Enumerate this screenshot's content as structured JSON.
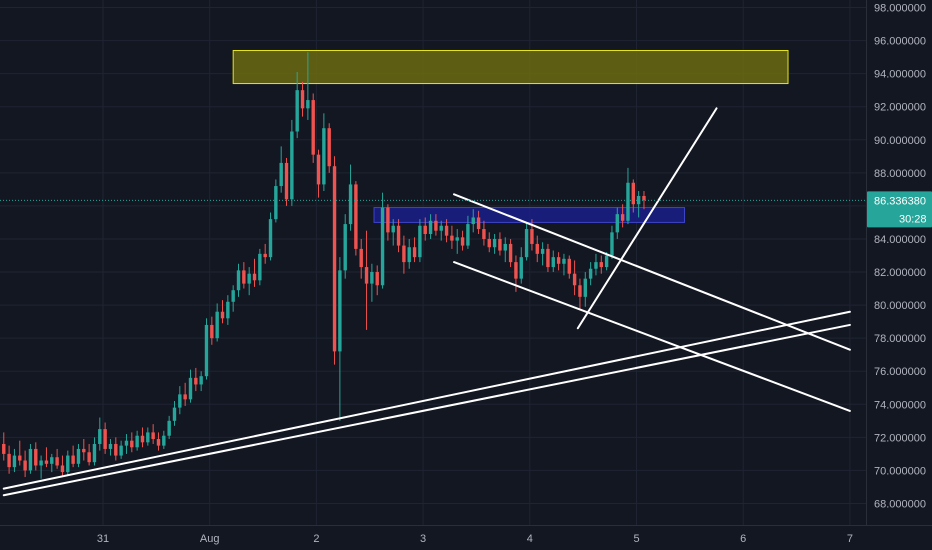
{
  "chart_data": {
    "type": "candlestick",
    "title": "",
    "colors": {
      "background": "#131722",
      "grid": "#1f2433",
      "up": "#26a69a",
      "down": "#ef5350",
      "axis_text": "#b2b5be",
      "price_line": "#26a69a",
      "drawing": "#ffffff",
      "resistance_zone_fill": "#6b6b10",
      "resistance_zone_border": "#e6e619",
      "support_zone_fill": "#1a1f8a",
      "support_zone_border": "#3d44c7"
    },
    "y_axis": {
      "ylim": [
        66.5,
        99.0
      ],
      "ticks": [
        "98.000000",
        "96.000000",
        "94.000000",
        "92.000000",
        "90.000000",
        "88.000000",
        "86.000000",
        "84.000000",
        "82.000000",
        "80.000000",
        "78.000000",
        "76.000000",
        "74.000000",
        "72.000000",
        "70.000000",
        "68.000000"
      ],
      "tick_values": [
        98,
        96,
        94,
        92,
        90,
        88,
        86,
        84,
        82,
        80,
        78,
        76,
        74,
        72,
        70,
        68
      ]
    },
    "x_axis": {
      "ticks": [
        "31",
        "Aug",
        "2",
        "3",
        "4",
        "5",
        "6",
        "7"
      ],
      "tick_positions": [
        0,
        1,
        2,
        3,
        4,
        5,
        6,
        7
      ],
      "xlim": [
        -0.93,
        7.0
      ]
    },
    "last_price": {
      "value": 86.33638,
      "label": "86.336380",
      "countdown": "30:28"
    },
    "candles": [
      [
        -0.93,
        71.6,
        72.3,
        70.6,
        71.0
      ],
      [
        -0.88,
        71.0,
        71.5,
        69.8,
        70.2
      ],
      [
        -0.83,
        70.2,
        71.3,
        69.9,
        70.9
      ],
      [
        -0.78,
        70.9,
        71.8,
        70.3,
        70.6
      ],
      [
        -0.73,
        70.6,
        71.2,
        69.6,
        70.0
      ],
      [
        -0.68,
        70.0,
        71.6,
        69.8,
        71.3
      ],
      [
        -0.63,
        71.3,
        71.7,
        70.0,
        70.3
      ],
      [
        -0.58,
        70.3,
        70.9,
        69.5,
        70.6
      ],
      [
        -0.53,
        70.6,
        71.4,
        70.2,
        70.4
      ],
      [
        -0.48,
        70.4,
        71.0,
        69.9,
        70.8
      ],
      [
        -0.43,
        70.8,
        71.3,
        70.1,
        70.3
      ],
      [
        -0.38,
        70.3,
        70.9,
        69.6,
        69.9
      ],
      [
        -0.33,
        69.9,
        71.2,
        69.7,
        70.9
      ],
      [
        -0.28,
        70.9,
        71.5,
        70.2,
        70.4
      ],
      [
        -0.23,
        70.4,
        71.6,
        70.2,
        71.3
      ],
      [
        -0.18,
        71.3,
        71.9,
        70.6,
        71.1
      ],
      [
        -0.13,
        71.1,
        71.6,
        70.3,
        70.5
      ],
      [
        -0.08,
        70.5,
        72.0,
        70.3,
        71.6
      ],
      [
        -0.03,
        71.6,
        73.2,
        71.2,
        72.5
      ],
      [
        0.02,
        72.5,
        72.9,
        71.0,
        71.3
      ],
      [
        0.07,
        71.3,
        71.9,
        70.9,
        71.6
      ],
      [
        0.12,
        71.6,
        72.0,
        70.6,
        70.9
      ],
      [
        0.17,
        70.9,
        71.8,
        70.7,
        71.5
      ],
      [
        0.22,
        71.5,
        72.2,
        71.0,
        71.8
      ],
      [
        0.27,
        71.8,
        72.3,
        71.1,
        71.4
      ],
      [
        0.32,
        71.4,
        72.4,
        71.2,
        72.1
      ],
      [
        0.37,
        72.1,
        72.6,
        71.4,
        71.7
      ],
      [
        0.42,
        71.7,
        72.6,
        71.5,
        72.3
      ],
      [
        0.47,
        72.3,
        72.8,
        71.6,
        71.9
      ],
      [
        0.52,
        71.9,
        72.3,
        71.2,
        71.5
      ],
      [
        0.57,
        71.5,
        72.4,
        71.3,
        72.1
      ],
      [
        0.62,
        72.1,
        73.3,
        71.9,
        73.0
      ],
      [
        0.67,
        73.0,
        74.2,
        72.7,
        73.8
      ],
      [
        0.72,
        73.8,
        75.1,
        73.4,
        74.6
      ],
      [
        0.77,
        74.6,
        75.3,
        73.9,
        74.3
      ],
      [
        0.82,
        74.3,
        76.1,
        74.1,
        75.6
      ],
      [
        0.87,
        75.6,
        76.2,
        74.8,
        75.2
      ],
      [
        0.92,
        75.2,
        76.0,
        74.8,
        75.7
      ],
      [
        0.97,
        75.7,
        79.2,
        75.5,
        78.8
      ],
      [
        1.02,
        78.8,
        79.3,
        77.6,
        78.0
      ],
      [
        1.07,
        78.0,
        80.1,
        77.8,
        79.6
      ],
      [
        1.12,
        79.6,
        80.3,
        78.9,
        79.2
      ],
      [
        1.17,
        79.2,
        80.6,
        78.8,
        80.2
      ],
      [
        1.22,
        80.2,
        81.2,
        79.6,
        80.9
      ],
      [
        1.27,
        80.9,
        82.5,
        80.5,
        82.1
      ],
      [
        1.32,
        82.1,
        82.6,
        81.0,
        81.3
      ],
      [
        1.37,
        81.3,
        82.3,
        80.6,
        81.9
      ],
      [
        1.42,
        81.9,
        82.8,
        81.1,
        81.5
      ],
      [
        1.47,
        81.5,
        83.4,
        81.2,
        83.1
      ],
      [
        1.52,
        83.1,
        83.7,
        82.5,
        82.9
      ],
      [
        1.57,
        82.9,
        85.6,
        82.7,
        85.2
      ],
      [
        1.62,
        85.2,
        87.6,
        85.0,
        87.2
      ],
      [
        1.67,
        87.2,
        89.6,
        86.8,
        88.6
      ],
      [
        1.72,
        88.6,
        88.9,
        86.0,
        86.4
      ],
      [
        1.77,
        86.4,
        91.2,
        86.0,
        90.5
      ],
      [
        1.82,
        90.5,
        94.1,
        90.1,
        93.0
      ],
      [
        1.87,
        93.0,
        93.5,
        91.4,
        91.9
      ],
      [
        1.92,
        91.9,
        95.3,
        91.2,
        92.4
      ],
      [
        1.97,
        92.4,
        92.8,
        88.6,
        89.1
      ],
      [
        2.02,
        89.1,
        89.4,
        86.5,
        87.3
      ],
      [
        2.07,
        87.3,
        91.6,
        86.9,
        90.7
      ],
      [
        2.12,
        90.7,
        91.0,
        88.0,
        88.4
      ],
      [
        2.17,
        88.4,
        89.0,
        76.4,
        77.2
      ],
      [
        2.22,
        77.2,
        82.9,
        73.0,
        82.1
      ],
      [
        2.27,
        82.1,
        85.5,
        81.6,
        84.9
      ],
      [
        2.32,
        84.9,
        88.5,
        84.5,
        87.3
      ],
      [
        2.37,
        87.3,
        87.5,
        83.0,
        83.4
      ],
      [
        2.42,
        83.4,
        84.0,
        81.6,
        82.3
      ],
      [
        2.47,
        82.3,
        84.5,
        78.5,
        81.3
      ],
      [
        2.52,
        81.3,
        82.5,
        80.2,
        82.0
      ],
      [
        2.57,
        82.0,
        82.4,
        80.6,
        81.2
      ],
      [
        2.62,
        81.2,
        86.8,
        81.0,
        85.9
      ],
      [
        2.67,
        85.9,
        86.1,
        83.9,
        84.4
      ],
      [
        2.72,
        84.4,
        85.2,
        83.6,
        84.8
      ],
      [
        2.77,
        84.8,
        85.2,
        83.2,
        83.6
      ],
      [
        2.82,
        83.6,
        84.2,
        81.9,
        82.6
      ],
      [
        2.87,
        82.6,
        84.0,
        82.2,
        83.5
      ],
      [
        2.92,
        83.5,
        84.1,
        82.6,
        82.9
      ],
      [
        2.97,
        82.9,
        85.2,
        82.6,
        84.8
      ],
      [
        3.02,
        84.8,
        85.3,
        83.9,
        84.3
      ],
      [
        3.07,
        84.3,
        85.5,
        84.0,
        85.1
      ],
      [
        3.12,
        85.1,
        85.5,
        84.2,
        84.5
      ],
      [
        3.17,
        84.5,
        85.1,
        83.9,
        84.8
      ],
      [
        3.22,
        84.8,
        85.2,
        83.8,
        84.2
      ],
      [
        3.27,
        84.2,
        84.8,
        83.4,
        83.9
      ],
      [
        3.32,
        83.9,
        84.6,
        83.1,
        84.1
      ],
      [
        3.37,
        84.1,
        84.5,
        83.3,
        83.6
      ],
      [
        3.42,
        83.6,
        85.4,
        83.4,
        84.9
      ],
      [
        3.47,
        84.9,
        85.8,
        84.4,
        85.3
      ],
      [
        3.52,
        85.3,
        85.7,
        84.3,
        84.6
      ],
      [
        3.57,
        84.6,
        85.1,
        83.6,
        84.0
      ],
      [
        3.62,
        84.0,
        84.4,
        83.2,
        83.5
      ],
      [
        3.67,
        83.5,
        84.3,
        83.1,
        84.0
      ],
      [
        3.72,
        84.0,
        84.4,
        83.0,
        83.3
      ],
      [
        3.77,
        83.3,
        84.1,
        82.6,
        83.7
      ],
      [
        3.82,
        83.7,
        84.0,
        82.3,
        82.6
      ],
      [
        3.87,
        82.6,
        83.0,
        80.8,
        81.6
      ],
      [
        3.92,
        81.6,
        83.5,
        81.3,
        82.9
      ],
      [
        3.97,
        82.9,
        85.0,
        82.7,
        84.6
      ],
      [
        4.02,
        84.6,
        85.2,
        83.3,
        83.7
      ],
      [
        4.07,
        83.7,
        84.2,
        82.6,
        83.1
      ],
      [
        4.12,
        83.1,
        83.8,
        82.4,
        83.4
      ],
      [
        4.17,
        83.4,
        83.7,
        82.0,
        82.3
      ],
      [
        4.22,
        82.3,
        83.3,
        82.0,
        82.9
      ],
      [
        4.27,
        82.9,
        83.2,
        82.1,
        82.5
      ],
      [
        4.32,
        82.5,
        83.1,
        81.8,
        82.8
      ],
      [
        4.37,
        82.8,
        83.0,
        81.6,
        81.9
      ],
      [
        4.42,
        81.9,
        82.7,
        80.6,
        81.2
      ],
      [
        4.47,
        81.2,
        81.6,
        79.8,
        80.5
      ],
      [
        4.52,
        80.5,
        82.0,
        79.9,
        81.6
      ],
      [
        4.57,
        81.6,
        82.6,
        81.2,
        82.2
      ],
      [
        4.62,
        82.2,
        83.1,
        81.8,
        82.6
      ],
      [
        4.67,
        82.6,
        83.0,
        81.9,
        82.3
      ],
      [
        4.72,
        82.3,
        83.2,
        82.1,
        83.0
      ],
      [
        4.77,
        83.0,
        84.8,
        82.8,
        84.4
      ],
      [
        4.82,
        84.4,
        85.9,
        84.0,
        85.5
      ],
      [
        4.87,
        85.5,
        86.1,
        84.7,
        85.1
      ],
      [
        4.92,
        85.1,
        88.3,
        84.9,
        87.4
      ],
      [
        4.97,
        87.4,
        87.6,
        85.6,
        86.1
      ],
      [
        5.02,
        86.1,
        86.9,
        85.3,
        86.6
      ],
      [
        5.07,
        86.6,
        86.9,
        85.8,
        86.34
      ]
    ],
    "drawings": {
      "zones": [
        {
          "name": "resistance-zone",
          "x0": 1.22,
          "x1": 6.42,
          "y0": 93.4,
          "y1": 95.4,
          "fill_key": "resistance_zone_fill",
          "border_key": "resistance_zone_border"
        },
        {
          "name": "support-zone",
          "x0": 2.54,
          "x1": 5.45,
          "y0": 85.0,
          "y1": 85.9,
          "fill_key": "support_zone_fill",
          "border_key": "support_zone_border"
        }
      ],
      "trendlines": [
        {
          "name": "long-uptrend-line-upper",
          "x0": -0.93,
          "y0": 68.9,
          "x1": 7.0,
          "y1": 79.6
        },
        {
          "name": "long-uptrend-line-lower",
          "x0": -0.93,
          "y0": 68.5,
          "x1": 7.0,
          "y1": 78.8
        },
        {
          "name": "channel-upper-line",
          "x0": 3.29,
          "y0": 86.7,
          "x1": 7.0,
          "y1": 77.3
        },
        {
          "name": "channel-lower-line",
          "x0": 3.29,
          "y0": 82.6,
          "x1": 7.0,
          "y1": 73.6
        },
        {
          "name": "breakout-trendline",
          "x0": 4.45,
          "y0": 78.6,
          "x1": 5.75,
          "y1": 91.9
        }
      ]
    },
    "grid": true
  }
}
